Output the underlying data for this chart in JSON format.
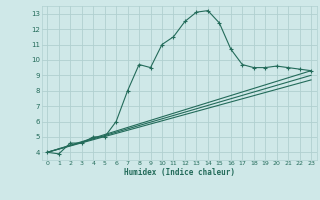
{
  "xlabel": "Humidex (Indice chaleur)",
  "bg_color": "#cfe8e8",
  "grid_color": "#b0d0d0",
  "line_color": "#236b5a",
  "xlim": [
    -0.5,
    23.5
  ],
  "ylim": [
    3.5,
    13.5
  ],
  "yticks": [
    4,
    5,
    6,
    7,
    8,
    9,
    10,
    11,
    12,
    13
  ],
  "xticks": [
    0,
    1,
    2,
    3,
    4,
    5,
    6,
    7,
    8,
    9,
    10,
    11,
    12,
    13,
    14,
    15,
    16,
    17,
    18,
    19,
    20,
    21,
    22,
    23
  ],
  "curve1_x": [
    0,
    1,
    2,
    3,
    4,
    5,
    6,
    7,
    8,
    9,
    10,
    11,
    12,
    13,
    14,
    15,
    16,
    17,
    18,
    19,
    20,
    21,
    22,
    23
  ],
  "curve1_y": [
    4.0,
    3.9,
    4.6,
    4.6,
    5.0,
    5.0,
    6.0,
    8.0,
    9.7,
    9.5,
    11.0,
    11.5,
    12.5,
    13.1,
    13.2,
    12.4,
    10.7,
    9.7,
    9.5,
    9.5,
    9.6,
    9.5,
    9.4,
    9.3
  ],
  "line2_x": [
    0,
    23
  ],
  "line2_y": [
    4.0,
    9.3
  ],
  "line3_x": [
    0,
    23
  ],
  "line3_y": [
    4.0,
    9.0
  ],
  "line4_x": [
    0,
    23
  ],
  "line4_y": [
    4.0,
    8.7
  ]
}
